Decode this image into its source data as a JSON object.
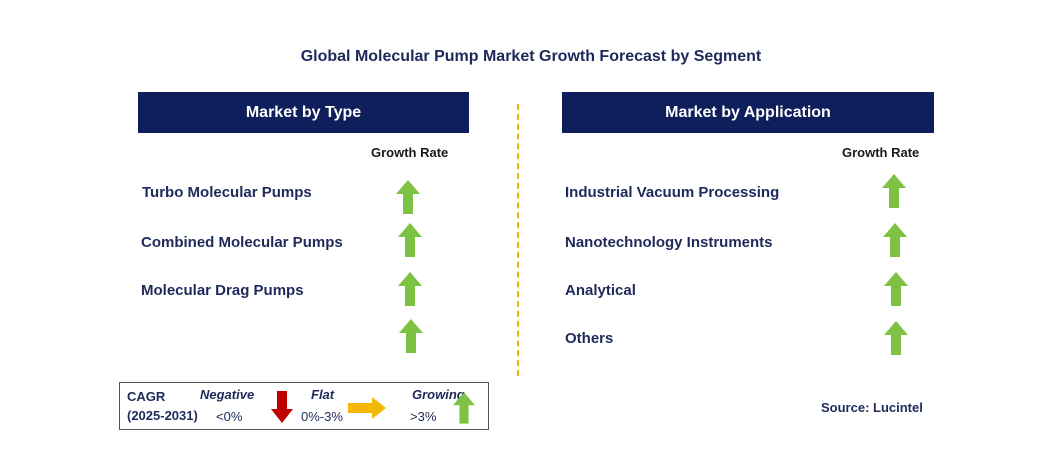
{
  "title": "Global Molecular Pump Market Growth Forecast by Segment",
  "left_panel": {
    "header": "Market by Type",
    "growth_label": "Growth Rate",
    "rows": [
      {
        "label": "Turbo Molecular Pumps",
        "trend": "growing"
      },
      {
        "label": "Combined Molecular Pumps",
        "trend": "growing"
      },
      {
        "label": "Molecular Drag Pumps",
        "trend": "growing"
      },
      {
        "label": "",
        "trend": "growing"
      }
    ]
  },
  "right_panel": {
    "header": "Market by Application",
    "growth_label": "Growth Rate",
    "rows": [
      {
        "label": "Industrial Vacuum Processing",
        "trend": "growing"
      },
      {
        "label": "Nanotechnology Instruments",
        "trend": "growing"
      },
      {
        "label": "Analytical",
        "trend": "growing"
      },
      {
        "label": "Others",
        "trend": "growing"
      }
    ]
  },
  "legend": {
    "cagr_label": "CAGR",
    "period": "(2025-2031)",
    "negative_label": "Negative",
    "negative_range": "<0%",
    "flat_label": "Flat",
    "flat_range": "0%-3%",
    "growing_label": "Growing",
    "growing_range": ">3%"
  },
  "source": "Source: Lucintel",
  "colors": {
    "header_bg": "#0f1f5c",
    "growing_arrow": "#7dc242",
    "negative_arrow": "#c00000",
    "flat_arrow": "#f5b800",
    "divider": "#f0b400"
  },
  "icons": {
    "growing": "arrow-up-icon",
    "negative": "arrow-down-icon",
    "flat": "arrow-right-icon"
  }
}
